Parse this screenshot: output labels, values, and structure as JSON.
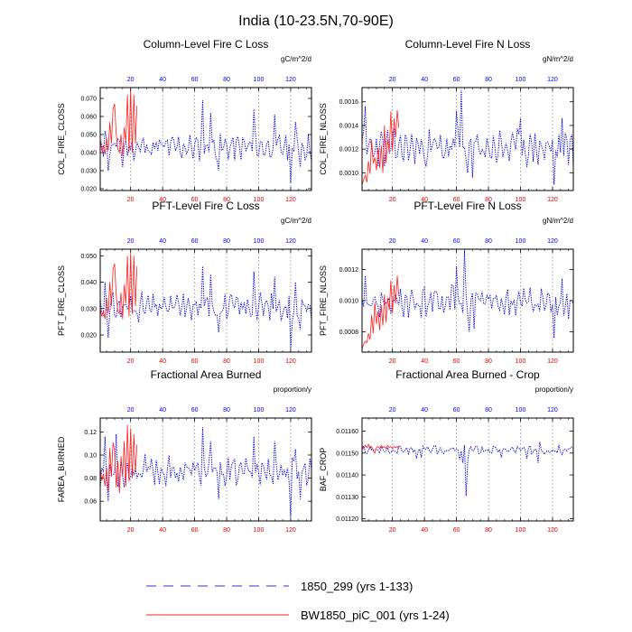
{
  "title": "India (10-23.5N,70-90E)",
  "colors": {
    "series_1850": "#0000dd",
    "series_bw": "#ff2020",
    "grid": "#888888"
  },
  "legend": [
    {
      "label": "1850_299 (yrs 1-133)",
      "style": "dashed",
      "color": "#3030c8"
    },
    {
      "label": "BW1850_piC_001 (yrs 1-24)",
      "style": "solid",
      "color": "#ff2020"
    }
  ],
  "chart_data": [
    {
      "type": "line",
      "title": "Column-Level Fire C Loss",
      "ylabel": "COL_FIRE_CLOSS",
      "units": "gC/m^2/d",
      "xlim": [
        1,
        133
      ],
      "xticks": [
        20,
        40,
        60,
        80,
        100,
        120
      ],
      "ylim": [
        0.019,
        0.076
      ],
      "yticks": [
        "0.020",
        "0.030",
        "0.040",
        "0.050",
        "0.060",
        "0.070"
      ],
      "series": [
        {
          "name": "1850_299",
          "base": 0.043,
          "amp": 0.0055,
          "seed": 11,
          "spikes": [
            [
              4,
              0.052
            ],
            [
              6,
              0.03
            ],
            [
              15,
              0.032
            ],
            [
              65,
              0.069
            ],
            [
              70,
              0.062
            ],
            [
              75,
              0.03
            ],
            [
              97,
              0.064
            ],
            [
              110,
              0.061
            ],
            [
              120,
              0.023
            ],
            [
              123,
              0.057
            ],
            [
              126,
              0.032
            ]
          ]
        },
        {
          "name": "BW1850_piC_001",
          "base": 0.046,
          "amp": 0.009,
          "seed": 5,
          "points": [
            [
              1,
              0.047
            ],
            [
              2,
              0.041
            ],
            [
              3,
              0.044
            ],
            [
              4,
              0.039
            ],
            [
              5,
              0.048
            ],
            [
              6,
              0.041
            ],
            [
              7,
              0.057
            ],
            [
              8,
              0.045
            ],
            [
              9,
              0.064
            ],
            [
              10,
              0.067
            ],
            [
              11,
              0.05
            ],
            [
              12,
              0.042
            ],
            [
              13,
              0.04
            ],
            [
              14,
              0.05
            ],
            [
              15,
              0.038
            ],
            [
              16,
              0.054
            ],
            [
              17,
              0.046
            ],
            [
              18,
              0.072
            ],
            [
              19,
              0.04
            ],
            [
              20,
              0.075
            ],
            [
              21,
              0.04
            ],
            [
              22,
              0.072
            ],
            [
              23,
              0.045
            ],
            [
              24,
              0.066
            ]
          ]
        }
      ]
    },
    {
      "type": "line",
      "title": "Column-Level Fire N Loss",
      "ylabel": "COL_FIRE_NLOSS",
      "units": "gN/m^2/d",
      "xlim": [
        1,
        133
      ],
      "xticks": [
        20,
        40,
        60,
        80,
        100,
        120
      ],
      "ylim": [
        0.00085,
        0.00172
      ],
      "yticks": [
        "0.0010",
        "0.0012",
        "0.0014",
        "0.0016"
      ],
      "series": [
        {
          "name": "1850_299",
          "base": 0.00121,
          "amp": 0.00012,
          "seed": 23,
          "spikes": [
            [
              3,
              0.00156
            ],
            [
              60,
              0.00152
            ],
            [
              63,
              0.0017
            ],
            [
              67,
              0.001
            ],
            [
              70,
              0.00096
            ],
            [
              100,
              0.00146
            ],
            [
              121,
              0.0009
            ],
            [
              126,
              0.00146
            ]
          ]
        },
        {
          "name": "BW1850_piC_001",
          "base": 0.00115,
          "amp": 0.0002,
          "seed": 7,
          "points": [
            [
              1,
              0.0009
            ],
            [
              2,
              0.00094
            ],
            [
              3,
              0.00098
            ],
            [
              4,
              0.00092
            ],
            [
              5,
              0.0011
            ],
            [
              6,
              0.00099
            ],
            [
              7,
              0.00128
            ],
            [
              8,
              0.00108
            ],
            [
              9,
              0.00113
            ],
            [
              10,
              0.00102
            ],
            [
              11,
              0.00121
            ],
            [
              12,
              0.00104
            ],
            [
              13,
              0.00123
            ],
            [
              14,
              0.001
            ],
            [
              15,
              0.0014
            ],
            [
              16,
              0.00108
            ],
            [
              17,
              0.00128
            ],
            [
              18,
              0.00118
            ],
            [
              19,
              0.00152
            ],
            [
              20,
              0.00118
            ],
            [
              21,
              0.00146
            ],
            [
              22,
              0.0013
            ],
            [
              23,
              0.00153
            ],
            [
              24,
              0.00138
            ]
          ]
        }
      ]
    },
    {
      "type": "line",
      "title": "PFT-Level Fire C Loss",
      "ylabel": "PFT_FIRE_CLOSS",
      "units": "gC/m^2/d",
      "xlim": [
        1,
        133
      ],
      "xticks": [
        20,
        40,
        60,
        80,
        100,
        120
      ],
      "ylim": [
        0.0135,
        0.0525
      ],
      "yticks": [
        "0.020",
        "0.030",
        "0.040",
        "0.050"
      ],
      "series": [
        {
          "name": "1850_299",
          "base": 0.0305,
          "amp": 0.004,
          "seed": 31,
          "spikes": [
            [
              4,
              0.04
            ],
            [
              6,
              0.019
            ],
            [
              65,
              0.046
            ],
            [
              70,
              0.043
            ],
            [
              75,
              0.021
            ],
            [
              97,
              0.044
            ],
            [
              110,
              0.042
            ],
            [
              120,
              0.015
            ],
            [
              123,
              0.04
            ],
            [
              126,
              0.022
            ]
          ]
        },
        {
          "name": "BW1850_piC_001",
          "base": 0.033,
          "amp": 0.007,
          "seed": 3,
          "points": [
            [
              1,
              0.03
            ],
            [
              2,
              0.027
            ],
            [
              3,
              0.029
            ],
            [
              4,
              0.026
            ],
            [
              5,
              0.034
            ],
            [
              6,
              0.028
            ],
            [
              7,
              0.04
            ],
            [
              8,
              0.031
            ],
            [
              9,
              0.045
            ],
            [
              10,
              0.047
            ],
            [
              11,
              0.035
            ],
            [
              12,
              0.029
            ],
            [
              13,
              0.028
            ],
            [
              14,
              0.036
            ],
            [
              15,
              0.026
            ],
            [
              16,
              0.039
            ],
            [
              17,
              0.032
            ],
            [
              18,
              0.05
            ],
            [
              19,
              0.027
            ],
            [
              20,
              0.051
            ],
            [
              21,
              0.028
            ],
            [
              22,
              0.05
            ],
            [
              23,
              0.031
            ],
            [
              24,
              0.046
            ]
          ]
        }
      ]
    },
    {
      "type": "line",
      "title": "PFT-Level Fire N Loss",
      "ylabel": "PFT_FIRE_NLOSS",
      "units": "gN/m^2/d",
      "xlim": [
        1,
        133
      ],
      "xticks": [
        20,
        40,
        60,
        80,
        100,
        120
      ],
      "ylim": [
        0.00067,
        0.00133
      ],
      "yticks": [
        "0.0008",
        "0.0010",
        "0.0012"
      ],
      "series": [
        {
          "name": "1850_299",
          "base": 0.00099,
          "amp": 8e-05,
          "seed": 41,
          "spikes": [
            [
              3,
              0.00116
            ],
            [
              57,
              0.0011
            ],
            [
              60,
              0.00122
            ],
            [
              65,
              0.00132
            ],
            [
              68,
              0.0008
            ],
            [
              71,
              0.00082
            ],
            [
              121,
              0.00076
            ],
            [
              126,
              0.00114
            ]
          ]
        },
        {
          "name": "BW1850_piC_001",
          "base": 0.0009,
          "amp": 0.00015,
          "seed": 9,
          "points": [
            [
              1,
              0.00069
            ],
            [
              2,
              0.00072
            ],
            [
              3,
              0.00074
            ],
            [
              4,
              0.00073
            ],
            [
              5,
              0.00079
            ],
            [
              6,
              0.00075
            ],
            [
              7,
              0.00091
            ],
            [
              8,
              0.00079
            ],
            [
              9,
              0.00099
            ],
            [
              10,
              0.00085
            ],
            [
              11,
              0.00093
            ],
            [
              12,
              0.00081
            ],
            [
              13,
              0.00097
            ],
            [
              14,
              0.00084
            ],
            [
              15,
              0.00104
            ],
            [
              16,
              0.00086
            ],
            [
              17,
              0.00102
            ],
            [
              18,
              0.00094
            ],
            [
              19,
              0.00113
            ],
            [
              20,
              0.00092
            ],
            [
              21,
              0.0011
            ],
            [
              22,
              0.00098
            ],
            [
              23,
              0.00116
            ],
            [
              24,
              0.00103
            ]
          ]
        }
      ]
    },
    {
      "type": "line",
      "title": "Fractional Area Burned",
      "ylabel": "FAREA_BURNED",
      "units": "proportion/y",
      "xlim": [
        1,
        133
      ],
      "xticks": [
        20,
        40,
        60,
        80,
        100,
        120
      ],
      "ylim": [
        0.043,
        0.132
      ],
      "yticks": [
        "0.06",
        "0.08",
        "0.10",
        "0.12"
      ],
      "series": [
        {
          "name": "1850_299",
          "base": 0.086,
          "amp": 0.01,
          "seed": 53,
          "spikes": [
            [
              4,
              0.116
            ],
            [
              6,
              0.06
            ],
            [
              11,
              0.118
            ],
            [
              65,
              0.124
            ],
            [
              70,
              0.112
            ],
            [
              75,
              0.062
            ],
            [
              97,
              0.116
            ],
            [
              110,
              0.112
            ],
            [
              120,
              0.047
            ],
            [
              123,
              0.105
            ],
            [
              126,
              0.062
            ]
          ]
        },
        {
          "name": "BW1850_piC_001",
          "base": 0.09,
          "amp": 0.015,
          "seed": 2,
          "points": [
            [
              1,
              0.089
            ],
            [
              2,
              0.078
            ],
            [
              3,
              0.084
            ],
            [
              4,
              0.073
            ],
            [
              5,
              0.089
            ],
            [
              6,
              0.068
            ],
            [
              7,
              0.106
            ],
            [
              8,
              0.081
            ],
            [
              9,
              0.111
            ],
            [
              10,
              0.104
            ],
            [
              11,
              0.072
            ],
            [
              12,
              0.095
            ],
            [
              13,
              0.067
            ],
            [
              14,
              0.099
            ],
            [
              15,
              0.081
            ],
            [
              16,
              0.112
            ],
            [
              17,
              0.073
            ],
            [
              18,
              0.126
            ],
            [
              19,
              0.077
            ],
            [
              20,
              0.123
            ],
            [
              21,
              0.08
            ],
            [
              22,
              0.118
            ],
            [
              23,
              0.085
            ],
            [
              24,
              0.109
            ]
          ]
        }
      ]
    },
    {
      "type": "line",
      "title": "Fractional Area Burned - Crop",
      "ylabel": "BAF_CROP",
      "units": "proportion/y",
      "xlim": [
        1,
        133
      ],
      "xticks": [
        20,
        40,
        60,
        80,
        100,
        120
      ],
      "ylim": [
        0.01119,
        0.01166
      ],
      "yticks": [
        "0.01120",
        "0.01130",
        "0.01140",
        "0.01150",
        "0.01160"
      ],
      "series": [
        {
          "name": "1850_299",
          "base": 0.011515,
          "amp": 1.5e-05,
          "seed": 67,
          "spikes": [
            [
              35,
              0.011475
            ],
            [
              38,
              0.01148
            ],
            [
              62,
              0.01147
            ],
            [
              64,
              0.011455
            ],
            [
              66,
              0.011305
            ],
            [
              67,
              0.01146
            ],
            [
              88,
              0.01148
            ],
            [
              104,
              0.011475
            ],
            [
              111,
              0.011455
            ],
            [
              112,
              0.01155
            ]
          ]
        },
        {
          "name": "BW1850_piC_001",
          "base": 0.01153,
          "amp": 1e-05,
          "seed": 13,
          "points": [
            [
              1,
              0.01153
            ],
            [
              2,
              0.01152
            ],
            [
              3,
              0.011535
            ],
            [
              4,
              0.011525
            ],
            [
              5,
              0.01154
            ],
            [
              6,
              0.01152
            ],
            [
              7,
              0.01153
            ],
            [
              8,
              0.01151
            ],
            [
              9,
              0.0115
            ],
            [
              10,
              0.011525
            ],
            [
              11,
              0.01153
            ],
            [
              12,
              0.01152
            ],
            [
              13,
              0.011535
            ],
            [
              14,
              0.011525
            ],
            [
              15,
              0.01153
            ],
            [
              16,
              0.01152
            ],
            [
              17,
              0.011535
            ],
            [
              18,
              0.011525
            ],
            [
              19,
              0.01153
            ],
            [
              20,
              0.01152
            ],
            [
              21,
              0.01153
            ],
            [
              22,
              0.011525
            ],
            [
              23,
              0.01153
            ],
            [
              24,
              0.01152
            ]
          ]
        }
      ]
    }
  ]
}
